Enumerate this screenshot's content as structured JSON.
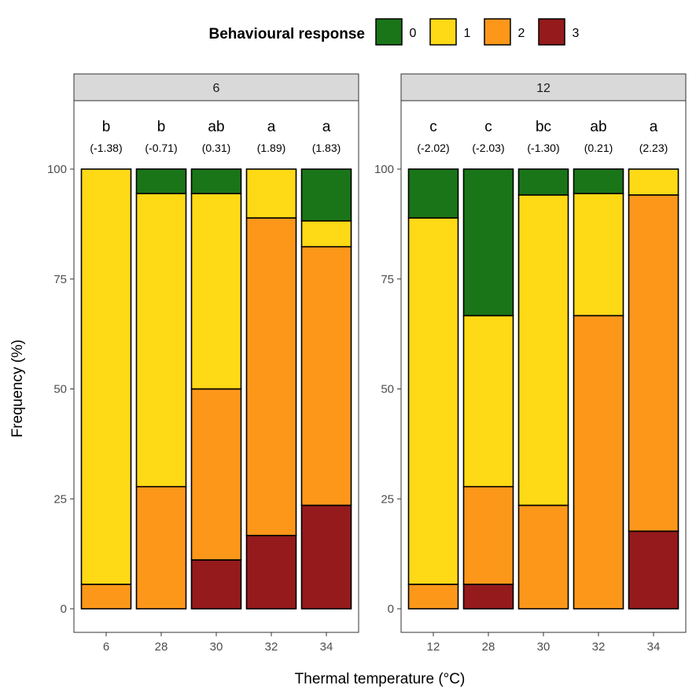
{
  "chart_data": {
    "type": "bar",
    "stacked": true,
    "xlabel": "Thermal temperature (°C)",
    "ylabel": "Frequency (%)",
    "ylim": [
      0,
      100
    ],
    "yticks": [
      0,
      25,
      50,
      75,
      100
    ],
    "grid": false,
    "legend": {
      "title": "Behavioural response",
      "placement": "top",
      "entries": [
        "0",
        "1",
        "2",
        "3"
      ],
      "colors": [
        "#1a7518",
        "#fdd916",
        "#fc971a",
        "#951a1c"
      ]
    },
    "panels": [
      {
        "strip": "6",
        "categories": [
          "6",
          "28",
          "30",
          "32",
          "34"
        ],
        "letters": [
          "b",
          "b",
          "ab",
          "a",
          "a"
        ],
        "scores": [
          "(-1.38)",
          "(-0.71)",
          "(0.31)",
          "(1.89)",
          "(1.83)"
        ],
        "series": [
          {
            "name": "0",
            "values": [
              0,
              5.56,
              5.56,
              0,
              11.76
            ]
          },
          {
            "name": "1",
            "values": [
              94.44,
              66.67,
              44.44,
              11.11,
              5.88
            ]
          },
          {
            "name": "2",
            "values": [
              5.56,
              27.78,
              38.89,
              72.22,
              58.82
            ]
          },
          {
            "name": "3",
            "values": [
              0,
              0,
              11.11,
              16.67,
              23.53
            ]
          }
        ]
      },
      {
        "strip": "12",
        "categories": [
          "12",
          "28",
          "30",
          "32",
          "34"
        ],
        "letters": [
          "c",
          "c",
          "bc",
          "ab",
          "a"
        ],
        "scores": [
          "(-2.02)",
          "(-2.03)",
          "(-1.30)",
          "(0.21)",
          "(2.23)"
        ],
        "series": [
          {
            "name": "0",
            "values": [
              11.11,
              33.33,
              5.88,
              5.56,
              0
            ]
          },
          {
            "name": "1",
            "values": [
              83.33,
              38.89,
              70.59,
              27.78,
              5.88
            ]
          },
          {
            "name": "2",
            "values": [
              5.56,
              22.22,
              23.53,
              66.67,
              76.47
            ]
          },
          {
            "name": "3",
            "values": [
              0,
              5.56,
              0,
              0,
              17.65
            ]
          }
        ]
      }
    ]
  }
}
